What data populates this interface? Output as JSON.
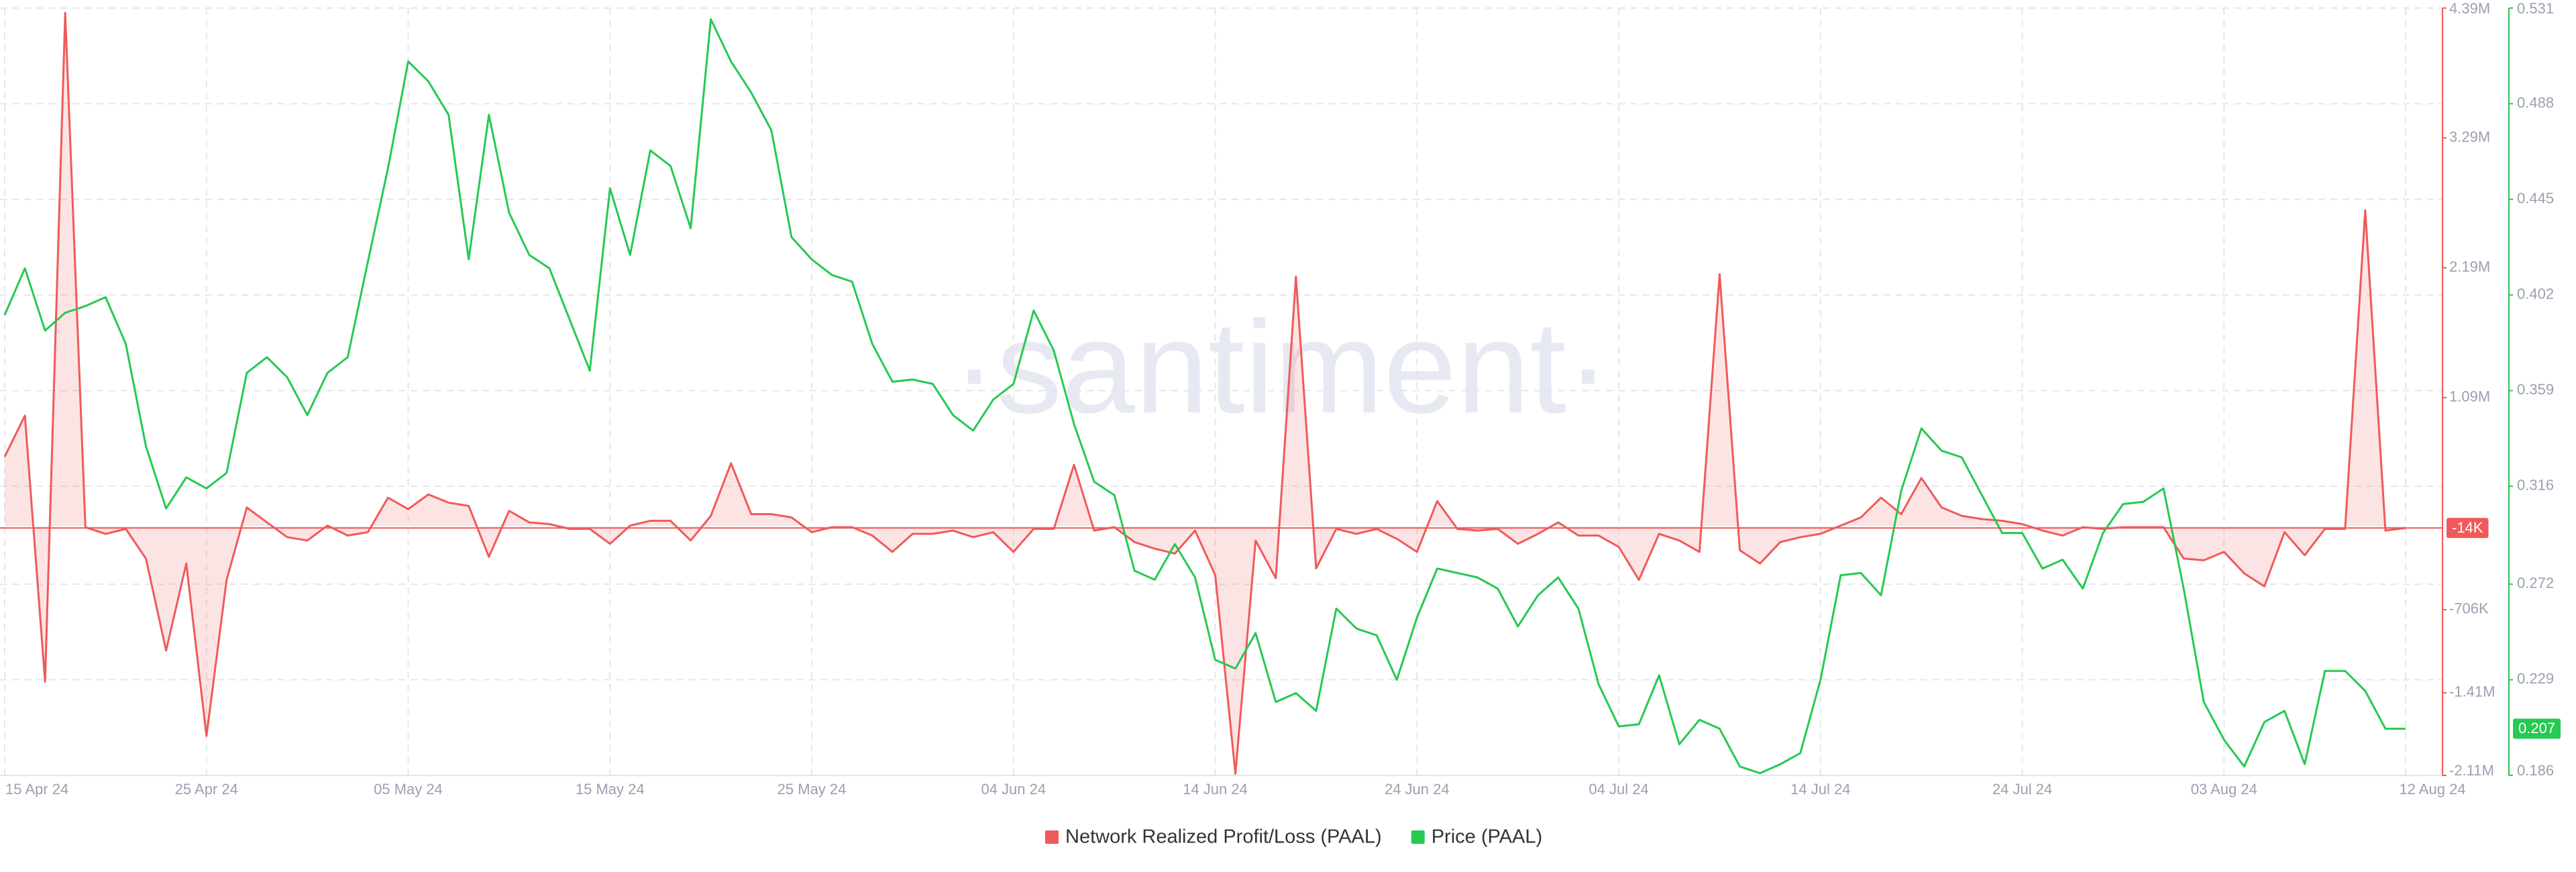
{
  "chart_data": {
    "type": "line",
    "watermark": "·santiment·",
    "x": [
      "2024-04-15",
      "2024-04-16",
      "2024-04-17",
      "2024-04-18",
      "2024-04-19",
      "2024-04-20",
      "2024-04-21",
      "2024-04-22",
      "2024-04-23",
      "2024-04-24",
      "2024-04-25",
      "2024-04-26",
      "2024-04-27",
      "2024-04-28",
      "2024-04-29",
      "2024-04-30",
      "2024-05-01",
      "2024-05-02",
      "2024-05-03",
      "2024-05-04",
      "2024-05-05",
      "2024-05-06",
      "2024-05-07",
      "2024-05-08",
      "2024-05-09",
      "2024-05-10",
      "2024-05-11",
      "2024-05-12",
      "2024-05-13",
      "2024-05-14",
      "2024-05-15",
      "2024-05-16",
      "2024-05-17",
      "2024-05-18",
      "2024-05-19",
      "2024-05-20",
      "2024-05-21",
      "2024-05-22",
      "2024-05-23",
      "2024-05-24",
      "2024-05-25",
      "2024-05-26",
      "2024-05-27",
      "2024-05-28",
      "2024-05-29",
      "2024-05-30",
      "2024-05-31",
      "2024-06-01",
      "2024-06-02",
      "2024-06-03",
      "2024-06-04",
      "2024-06-05",
      "2024-06-06",
      "2024-06-07",
      "2024-06-08",
      "2024-06-09",
      "2024-06-10",
      "2024-06-11",
      "2024-06-12",
      "2024-06-13",
      "2024-06-14",
      "2024-06-15",
      "2024-06-16",
      "2024-06-17",
      "2024-06-18",
      "2024-06-19",
      "2024-06-20",
      "2024-06-21",
      "2024-06-22",
      "2024-06-23",
      "2024-06-24",
      "2024-06-25",
      "2024-06-26",
      "2024-06-27",
      "2024-06-28",
      "2024-06-29",
      "2024-06-30",
      "2024-07-01",
      "2024-07-02",
      "2024-07-03",
      "2024-07-04",
      "2024-07-05",
      "2024-07-06",
      "2024-07-07",
      "2024-07-08",
      "2024-07-09",
      "2024-07-10",
      "2024-07-11",
      "2024-07-12",
      "2024-07-13",
      "2024-07-14",
      "2024-07-15",
      "2024-07-16",
      "2024-07-17",
      "2024-07-18",
      "2024-07-19",
      "2024-07-20",
      "2024-07-21",
      "2024-07-22",
      "2024-07-23",
      "2024-07-24",
      "2024-07-25",
      "2024-07-26",
      "2024-07-27",
      "2024-07-28",
      "2024-07-29",
      "2024-07-30",
      "2024-07-31",
      "2024-08-01",
      "2024-08-02",
      "2024-08-03",
      "2024-08-04",
      "2024-08-05",
      "2024-08-06",
      "2024-08-07",
      "2024-08-08",
      "2024-08-09",
      "2024-08-10",
      "2024-08-11",
      "2024-08-12"
    ],
    "xticks": [
      {
        "value": "2024-04-15",
        "label": "15 Apr 24"
      },
      {
        "value": "2024-04-25",
        "label": "25 Apr 24"
      },
      {
        "value": "2024-05-05",
        "label": "05 May 24"
      },
      {
        "value": "2024-05-15",
        "label": "15 May 24"
      },
      {
        "value": "2024-05-25",
        "label": "25 May 24"
      },
      {
        "value": "2024-06-04",
        "label": "04 Jun 24"
      },
      {
        "value": "2024-06-14",
        "label": "14 Jun 24"
      },
      {
        "value": "2024-06-24",
        "label": "24 Jun 24"
      },
      {
        "value": "2024-07-04",
        "label": "04 Jul 24"
      },
      {
        "value": "2024-07-14",
        "label": "14 Jul 24"
      },
      {
        "value": "2024-07-24",
        "label": "24 Jul 24"
      },
      {
        "value": "2024-08-03",
        "label": "03 Aug 24"
      },
      {
        "value": "2024-08-12",
        "label": "12 Aug 24"
      }
    ],
    "ylim": [
      -2110000,
      4390000
    ],
    "yticks": [
      {
        "value": 4390000,
        "label": "4.39M"
      },
      {
        "value": 3290000,
        "label": "3.29M"
      },
      {
        "value": 2190000,
        "label": "2.19M"
      },
      {
        "value": 1090000,
        "label": "1.09M"
      },
      {
        "value": -706000,
        "label": "-706K"
      },
      {
        "value": -1410000,
        "label": "-1.41M"
      },
      {
        "value": -2110000,
        "label": "-2.11M"
      }
    ],
    "y2lim": [
      0.186,
      0.531
    ],
    "y2ticks": [
      0.531,
      0.488,
      0.445,
      0.402,
      0.359,
      0.316,
      0.272,
      0.229,
      0.186
    ],
    "grid": true,
    "legend": "bottom",
    "series": [
      {
        "name": "Network Realized Profit/Loss (PAAL)",
        "color": "#f05a5a",
        "axis": "y",
        "values": [
          590000,
          938000,
          -1317000,
          4348000,
          -8000,
          -64000,
          -22000,
          -273000,
          -1052000,
          -315000,
          -1776000,
          -454000,
          160000,
          33000,
          -92000,
          -120000,
          6000,
          -78000,
          -50000,
          243000,
          145000,
          270000,
          200000,
          173000,
          -259000,
          131000,
          33000,
          19000,
          -22000,
          -22000,
          -148000,
          6000,
          47000,
          47000,
          -120000,
          89000,
          534000,
          103000,
          103000,
          75000,
          -50000,
          -8000,
          -8000,
          -78000,
          -217000,
          -64000,
          -64000,
          -36000,
          -92000,
          -50000,
          -217000,
          -22000,
          -22000,
          521000,
          -36000,
          -8000,
          -134000,
          -189000,
          -231000,
          -36000,
          -412000,
          -2096000,
          -120000,
          -440000,
          2115000,
          -356000,
          -22000,
          -64000,
          -22000,
          -106000,
          -217000,
          214000,
          -22000,
          -36000,
          -22000,
          -148000,
          -64000,
          33000,
          -78000,
          -78000,
          -175000,
          -454000,
          -64000,
          -120000,
          -217000,
          2135000,
          -203000,
          -315000,
          -134000,
          -92000,
          -64000,
          6000,
          75000,
          243000,
          103000,
          409000,
          160000,
          89000,
          61000,
          47000,
          19000,
          -36000,
          -78000,
          -8000,
          -22000,
          -8000,
          -8000,
          -8000,
          -273000,
          -287000,
          -217000,
          -398000,
          -509000,
          -50000,
          -245000,
          -22000,
          -22000,
          2677000,
          -36000,
          -14000
        ],
        "value_labels": [
          null,
          null,
          null,
          null,
          null,
          null,
          null,
          null,
          null,
          null,
          null,
          null,
          null,
          null,
          null,
          null,
          null,
          null,
          null,
          null,
          null,
          null,
          null,
          null,
          null,
          null,
          null,
          null,
          null,
          null,
          null,
          null,
          null,
          null,
          null,
          null,
          null,
          null,
          null,
          null,
          null,
          null,
          null,
          null,
          null,
          null,
          null,
          null,
          null,
          null,
          null,
          null,
          null,
          null,
          null,
          null,
          null,
          null,
          null,
          null,
          null,
          null,
          null,
          null,
          null,
          null,
          null,
          null,
          null,
          null,
          null,
          null,
          null,
          null,
          null,
          null,
          null,
          null,
          null,
          null,
          null,
          null,
          null,
          null,
          null,
          null,
          null,
          null,
          null,
          null,
          null,
          null,
          null,
          null,
          null,
          null,
          null,
          null,
          null,
          null,
          null,
          null,
          null,
          null,
          null,
          null,
          null,
          null,
          null,
          null,
          null,
          null,
          null,
          null,
          null,
          null,
          null,
          null,
          null,
          "-14K"
        ]
      },
      {
        "name": "Price (PAAL)",
        "color": "#26c953",
        "axis": "y2",
        "values": [
          0.393,
          0.414,
          0.386,
          0.394,
          0.397,
          0.401,
          0.38,
          0.334,
          0.306,
          0.32,
          0.315,
          0.322,
          0.367,
          0.374,
          0.365,
          0.348,
          0.367,
          0.374,
          0.417,
          0.459,
          0.507,
          0.498,
          0.483,
          0.418,
          0.483,
          0.439,
          0.42,
          0.414,
          0.391,
          0.368,
          0.45,
          0.42,
          0.467,
          0.46,
          0.432,
          0.526,
          0.507,
          0.493,
          0.476,
          0.428,
          0.418,
          0.411,
          0.408,
          0.38,
          0.363,
          0.364,
          0.362,
          0.348,
          0.341,
          0.355,
          0.362,
          0.395,
          0.377,
          0.344,
          0.318,
          0.312,
          0.278,
          0.274,
          0.29,
          0.275,
          0.238,
          0.234,
          0.25,
          0.219,
          0.223,
          0.215,
          0.261,
          0.252,
          0.249,
          0.229,
          0.257,
          0.279,
          0.277,
          0.275,
          0.27,
          0.253,
          0.267,
          0.275,
          0.261,
          0.227,
          0.208,
          0.209,
          0.231,
          0.2,
          0.211,
          0.207,
          0.19,
          0.187,
          0.191,
          0.196,
          0.229,
          0.276,
          0.277,
          0.267,
          0.314,
          0.342,
          0.332,
          0.329,
          0.312,
          0.295,
          0.295,
          0.279,
          0.283,
          0.27,
          0.295,
          0.308,
          0.309,
          0.315,
          0.27,
          0.219,
          0.202,
          0.19,
          0.21,
          0.215,
          0.191,
          0.233,
          0.233,
          0.224,
          0.207,
          0.207
        ]
      }
    ]
  }
}
